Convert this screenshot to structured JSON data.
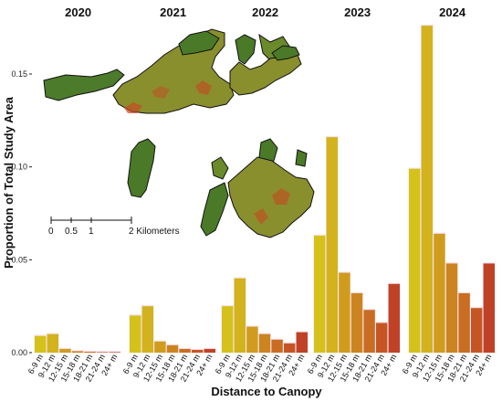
{
  "chart_data": {
    "type": "bar",
    "title": "",
    "xlabel": "Distance to Canopy",
    "ylabel": "Proportion of Total Study Area",
    "ylim": [
      0,
      0.18
    ],
    "yticks": [
      0.0,
      0.05,
      0.1,
      0.15
    ],
    "ytick_labels": [
      "0.00",
      "0.05",
      "0.10",
      "0.15"
    ],
    "categories": [
      "6-9 m",
      "9-12 m",
      "12-15 m",
      "15-18 m",
      "18-21 m",
      "21-24 m",
      "24+ m"
    ],
    "category_colors": [
      "#d4c21b",
      "#d2b31e",
      "#cf9c1e",
      "#cc8420",
      "#c96d22",
      "#c55624",
      "#c04226"
    ],
    "series": [
      {
        "name": "2020",
        "values": [
          0.009,
          0.01,
          0.002,
          0.0008,
          0.0005,
          0.0003,
          0.0001
        ]
      },
      {
        "name": "2021",
        "values": [
          0.02,
          0.025,
          0.006,
          0.004,
          0.002,
          0.0015,
          0.002
        ]
      },
      {
        "name": "2022",
        "values": [
          0.025,
          0.04,
          0.014,
          0.01,
          0.007,
          0.005,
          0.011
        ]
      },
      {
        "name": "2023",
        "values": [
          0.063,
          0.116,
          0.043,
          0.032,
          0.023,
          0.016,
          0.037
        ]
      },
      {
        "name": "2024",
        "values": [
          0.099,
          0.176,
          0.064,
          0.048,
          0.032,
          0.024,
          0.048
        ]
      }
    ],
    "grid": false,
    "legend": "none"
  },
  "inset_map": {
    "scale_bar_labels": [
      "0",
      "0.5",
      "1",
      "2 Kilometers"
    ]
  }
}
